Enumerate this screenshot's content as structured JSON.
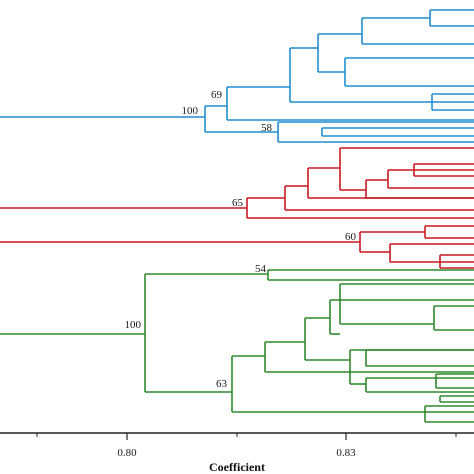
{
  "colors": {
    "blue": "#1f8fd0",
    "red": "#c8191f",
    "green": "#2e8a2e",
    "axis": "#222222"
  },
  "clusters": [
    {
      "name": "cluster-blue",
      "color_key": "blue",
      "bootstrap": [
        "100",
        "69",
        "58"
      ]
    },
    {
      "name": "cluster-red",
      "color_key": "red",
      "bootstrap": [
        "65",
        "60"
      ]
    },
    {
      "name": "cluster-green",
      "color_key": "green",
      "bootstrap": [
        "54",
        "100",
        "63"
      ]
    }
  ],
  "axis": {
    "title": "Coefficient",
    "ticks": [
      {
        "label": "0.80",
        "value": 0.8
      },
      {
        "label": "0.83",
        "value": 0.83
      }
    ]
  }
}
